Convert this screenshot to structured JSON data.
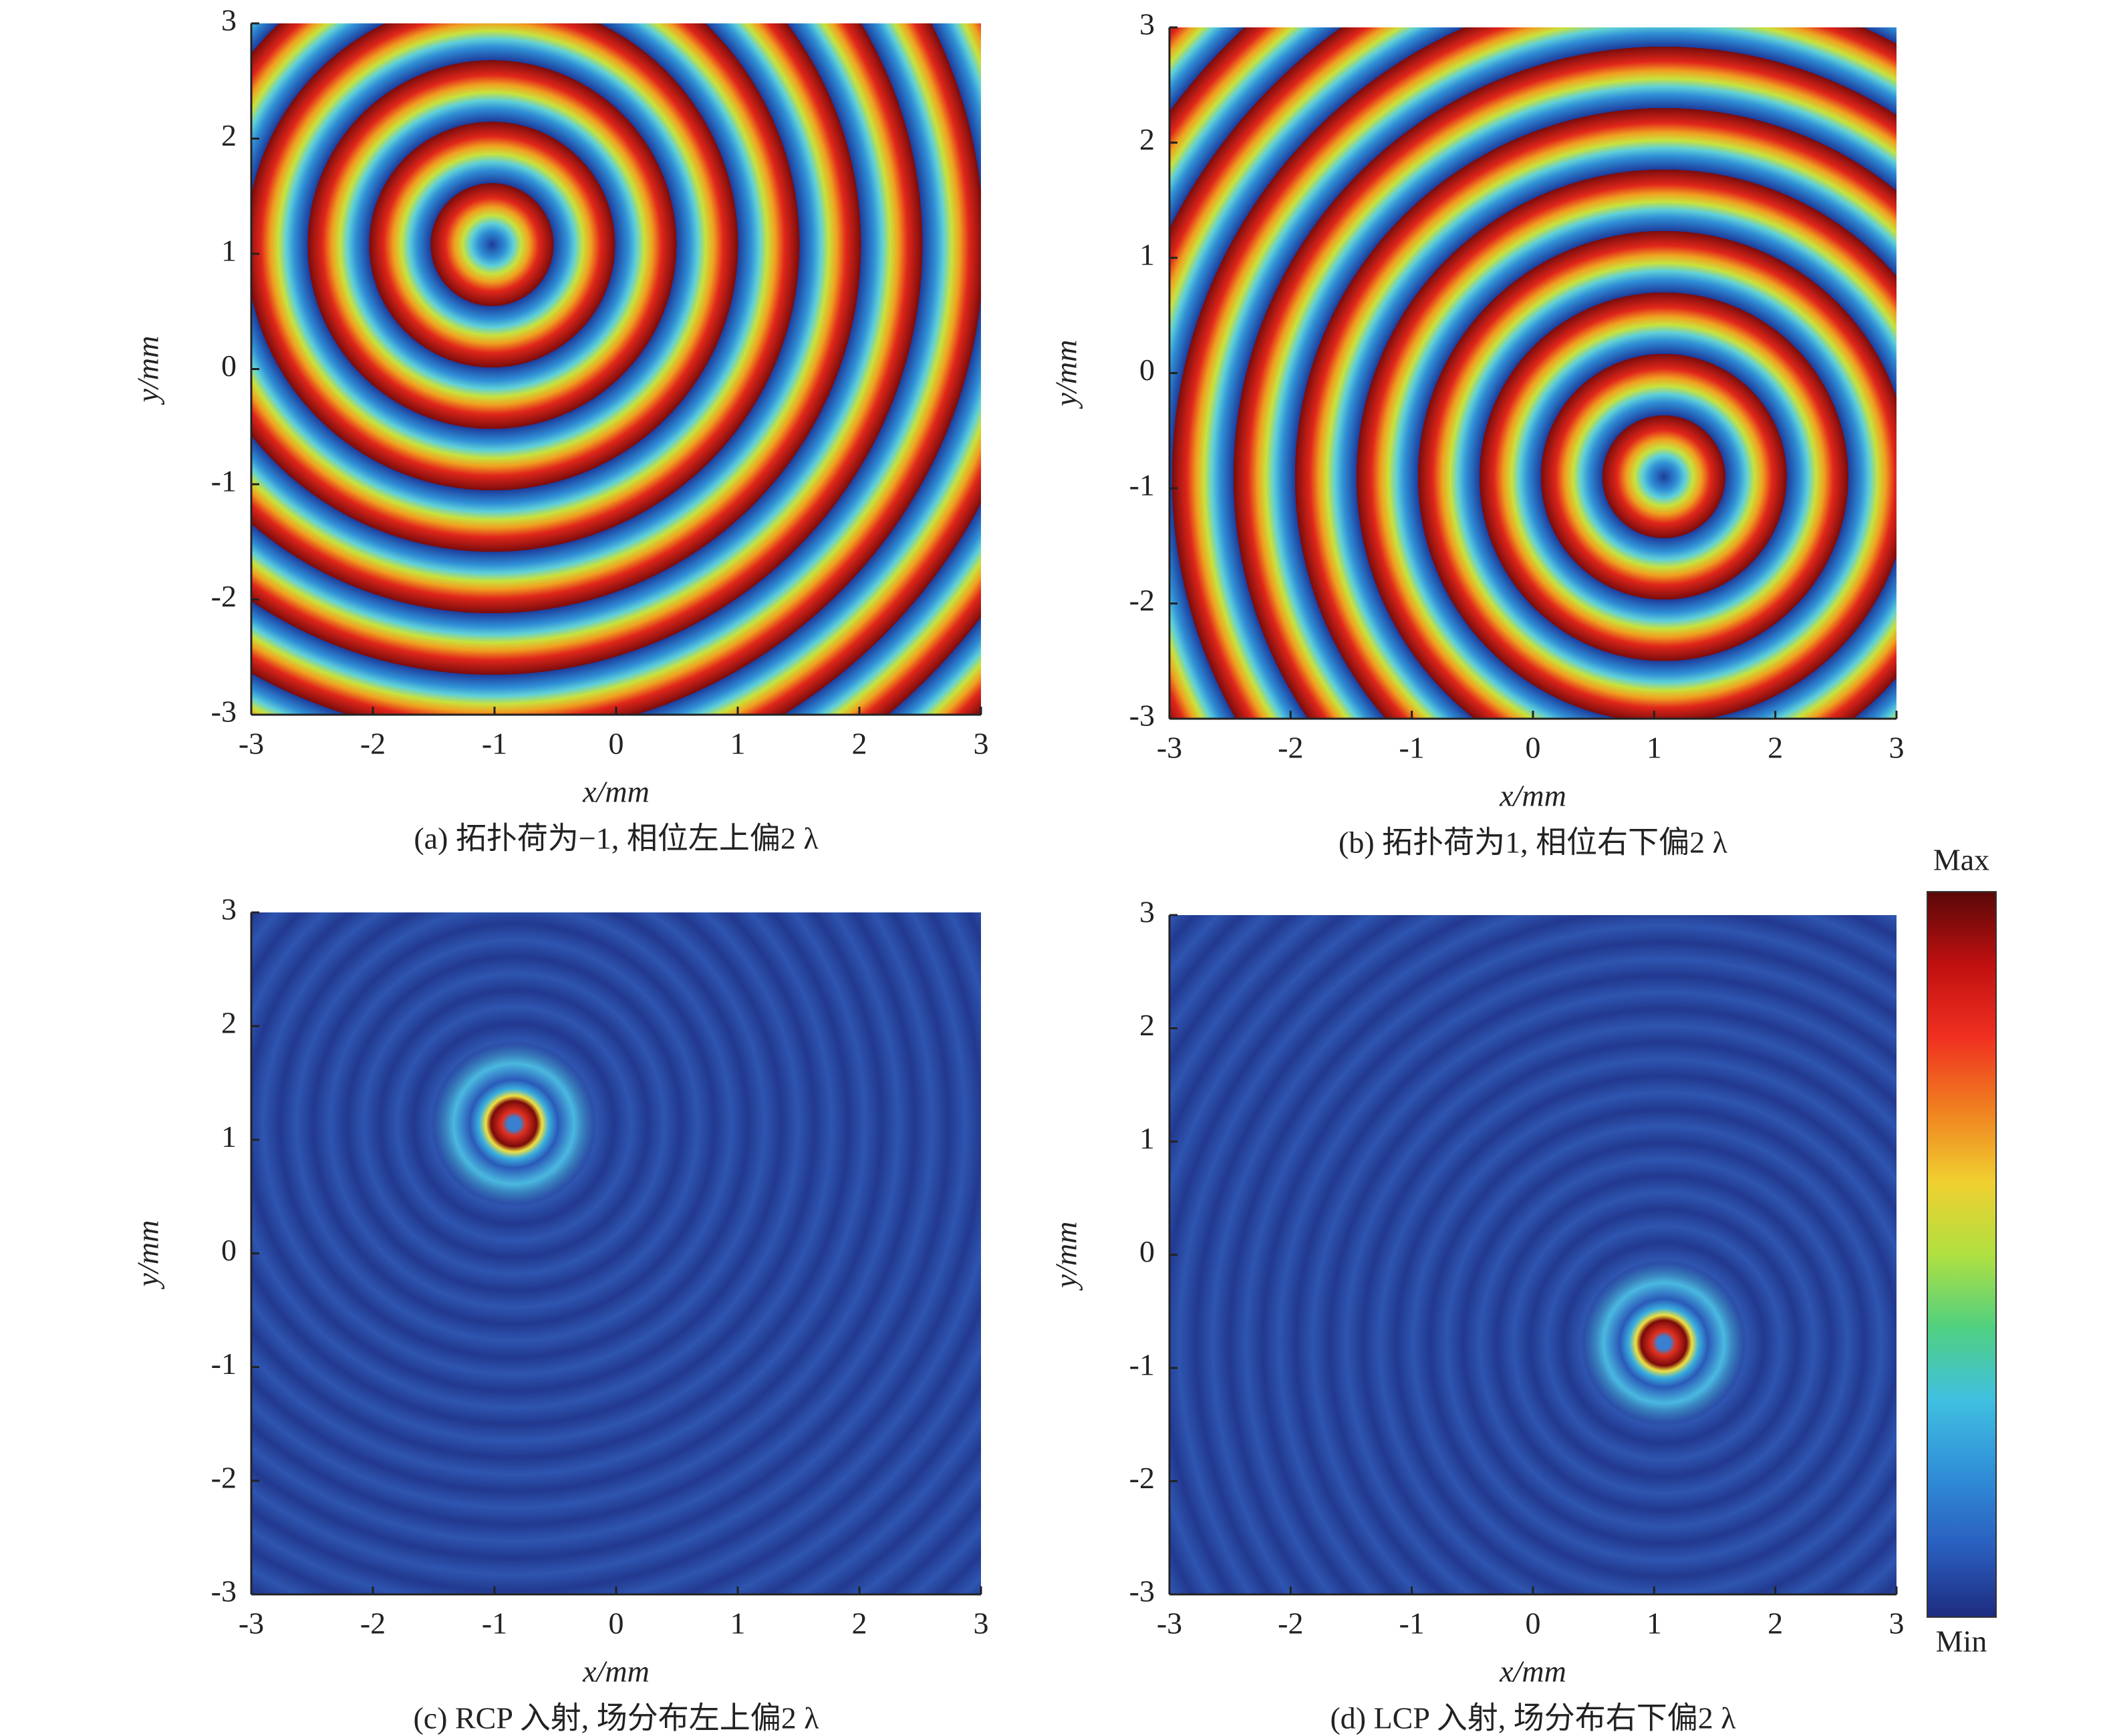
{
  "chart_data": [
    {
      "type": "heatmap",
      "caption": "(a) 拓扑荷为−1, 相位左上偏2 λ",
      "xlabel": "x/mm",
      "ylabel": "y/mm",
      "xlim": [
        -3,
        3
      ],
      "ylim": [
        -3,
        3
      ],
      "xticks": [
        -3,
        -2,
        -1,
        0,
        1,
        2,
        3
      ],
      "yticks": [
        -3,
        -2,
        -1,
        0,
        1,
        2,
        3
      ]
    },
    {
      "type": "heatmap",
      "caption": "(b) 拓扑荷为1, 相位右下偏2 λ",
      "xlabel": "x/mm",
      "ylabel": "y/mm",
      "xlim": [
        -3,
        3
      ],
      "ylim": [
        -3,
        3
      ],
      "xticks": [
        -3,
        -2,
        -1,
        0,
        1,
        2,
        3
      ],
      "yticks": [
        -3,
        -2,
        -1,
        0,
        1,
        2,
        3
      ]
    },
    {
      "type": "heatmap",
      "caption": "(c) RCP 入射, 场分布左上偏2 λ",
      "xlabel": "x/mm",
      "ylabel": "y/mm",
      "xlim": [
        -3,
        3
      ],
      "ylim": [
        -3,
        3
      ],
      "xticks": [
        -3,
        -2,
        -1,
        0,
        1,
        2,
        3
      ],
      "yticks": [
        -3,
        -2,
        -1,
        0,
        1,
        2,
        3
      ]
    },
    {
      "type": "heatmap",
      "caption": "(d) LCP 入射, 场分布右下偏2 λ",
      "xlabel": "x/mm",
      "ylabel": "y/mm",
      "xlim": [
        -3,
        3
      ],
      "ylim": [
        -3,
        3
      ],
      "xticks": [
        -3,
        -2,
        -1,
        0,
        1,
        2,
        3
      ],
      "yticks": [
        -3,
        -2,
        -1,
        0,
        1,
        2,
        3
      ]
    }
  ],
  "colorbar": {
    "max_label": "Max",
    "min_label": "Min"
  }
}
